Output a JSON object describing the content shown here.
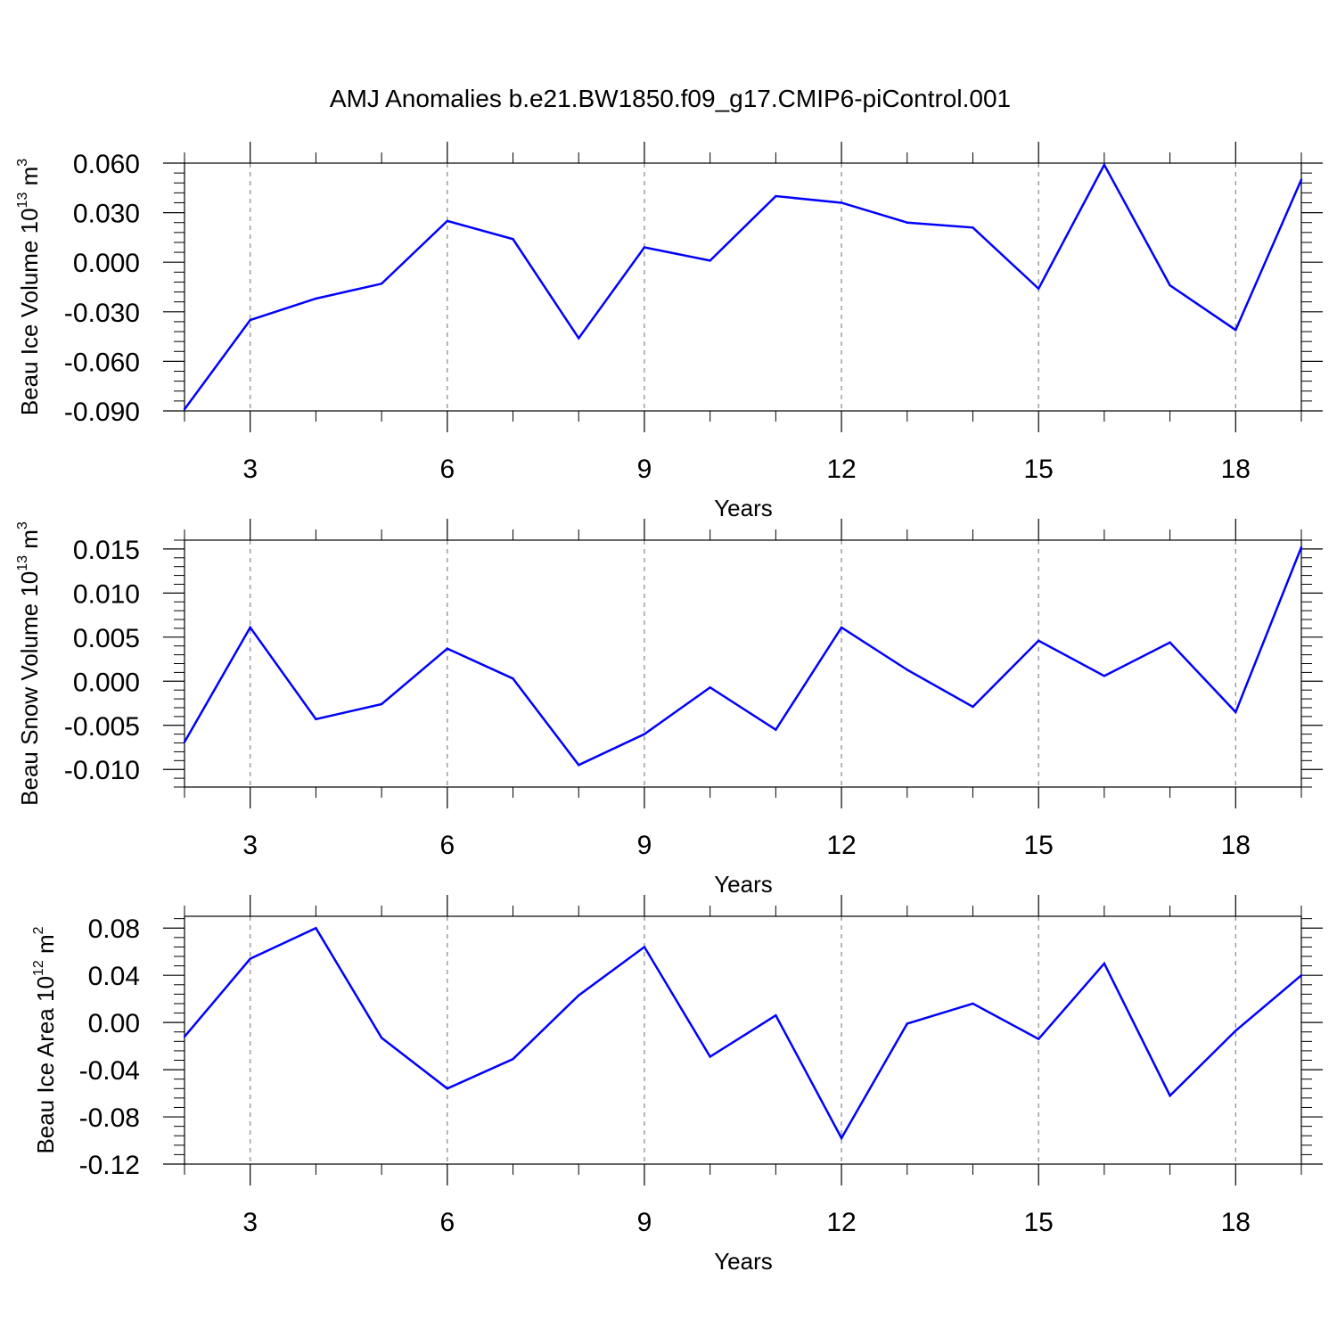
{
  "title": "AMJ Anomalies b.e21.BW1850.f09_g17.CMIP6-piControl.001",
  "colors": {
    "line": "#0000ff",
    "axis": "#000000",
    "grid": "#888888"
  },
  "chart_data": [
    {
      "type": "line",
      "xlabel": "Years",
      "ylabel": {
        "base": "Beau Ice Volume 10",
        "exp": "13",
        "unit": " m",
        "unit_exp": "3"
      },
      "xlim": [
        2,
        19
      ],
      "ylim": [
        -0.09,
        0.06
      ],
      "xticks": [
        "3",
        "6",
        "9",
        "12",
        "15",
        "18"
      ],
      "xtick_values": [
        3,
        6,
        9,
        12,
        15,
        18
      ],
      "yticks": [
        "0.060",
        "0.030",
        "0.000",
        "-0.030",
        "-0.060",
        "-0.090"
      ],
      "ytick_values": [
        0.06,
        0.03,
        0.0,
        -0.03,
        -0.06,
        -0.09
      ],
      "grid": "vertical dashed at major x ticks",
      "series": [
        {
          "x": [
            2,
            3,
            4,
            5,
            6,
            7,
            8,
            9,
            10,
            11,
            12,
            13,
            14,
            15,
            16,
            17,
            18,
            19
          ],
          "values": [
            -0.089,
            -0.035,
            -0.022,
            -0.013,
            0.025,
            0.014,
            -0.046,
            0.009,
            0.001,
            0.04,
            0.036,
            0.024,
            0.021,
            -0.016,
            0.059,
            -0.014,
            -0.041,
            0.05
          ]
        }
      ]
    },
    {
      "type": "line",
      "xlabel": "Years",
      "ylabel": {
        "base": "Beau Snow Volume 10",
        "exp": "13",
        "unit": " m",
        "unit_exp": "3"
      },
      "xlim": [
        2,
        19
      ],
      "ylim": [
        -0.012,
        0.016
      ],
      "xticks": [
        "3",
        "6",
        "9",
        "12",
        "15",
        "18"
      ],
      "xtick_values": [
        3,
        6,
        9,
        12,
        15,
        18
      ],
      "yticks": [
        "0.015",
        "0.010",
        "0.005",
        "0.000",
        "-0.005",
        "-0.010"
      ],
      "ytick_values": [
        0.015,
        0.01,
        0.005,
        0.0,
        -0.005,
        -0.01
      ],
      "grid": "vertical dashed at major x ticks",
      "series": [
        {
          "x": [
            2,
            3,
            4,
            5,
            6,
            7,
            8,
            9,
            10,
            11,
            12,
            13,
            14,
            15,
            16,
            17,
            18,
            19
          ],
          "values": [
            -0.0069,
            0.0061,
            -0.0043,
            -0.0026,
            0.0037,
            0.0003,
            -0.0095,
            -0.006,
            -0.0007,
            -0.0055,
            0.0061,
            0.0013,
            -0.0029,
            0.0046,
            0.0006,
            0.0044,
            -0.0035,
            0.0152
          ]
        }
      ]
    },
    {
      "type": "line",
      "xlabel": "Years",
      "ylabel": {
        "base": "Beau Ice Area 10",
        "exp": "12",
        "unit": " m",
        "unit_exp": "2"
      },
      "xlim": [
        2,
        19
      ],
      "ylim": [
        -0.12,
        0.09
      ],
      "xticks": [
        "3",
        "6",
        "9",
        "12",
        "15",
        "18"
      ],
      "xtick_values": [
        3,
        6,
        9,
        12,
        15,
        18
      ],
      "yticks": [
        "0.08",
        "0.04",
        "0.00",
        "-0.04",
        "-0.08",
        "-0.12"
      ],
      "ytick_values": [
        0.08,
        0.04,
        0.0,
        -0.04,
        -0.08,
        -0.12
      ],
      "grid": "vertical dashed at major x ticks",
      "series": [
        {
          "x": [
            2,
            3,
            4,
            5,
            6,
            7,
            8,
            9,
            10,
            11,
            12,
            13,
            14,
            15,
            16,
            17,
            18,
            19
          ],
          "values": [
            -0.012,
            0.054,
            0.08,
            -0.013,
            -0.056,
            -0.031,
            0.023,
            0.064,
            -0.029,
            0.006,
            -0.098,
            -0.001,
            0.016,
            -0.014,
            0.05,
            -0.062,
            -0.007,
            0.04
          ]
        }
      ]
    }
  ]
}
